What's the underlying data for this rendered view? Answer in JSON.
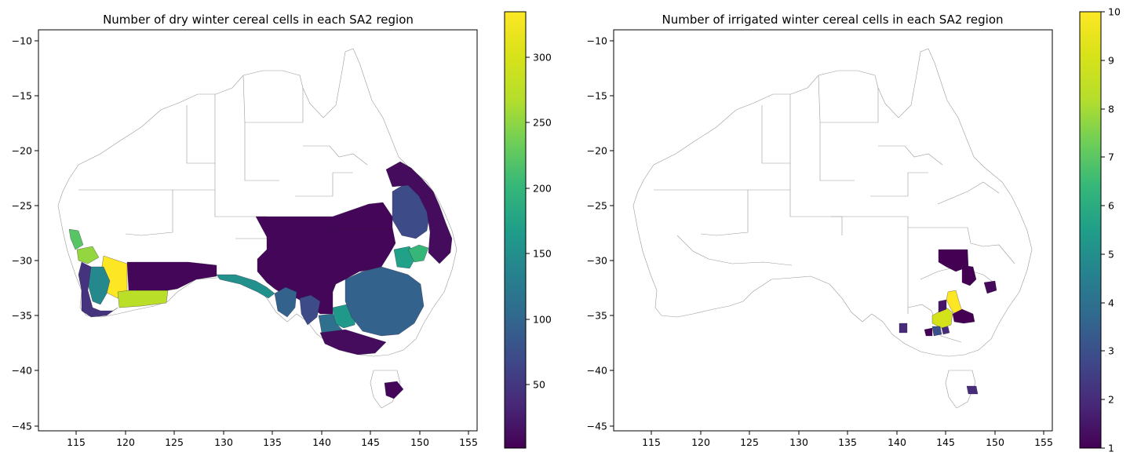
{
  "maps": [
    {
      "title": "Number of dry winter cereal cells in each SA2 region",
      "x_ticks": [
        "115",
        "120",
        "125",
        "130",
        "135",
        "140",
        "145",
        "150",
        "155"
      ],
      "y_ticks": [
        "−10",
        "−15",
        "−20",
        "−25",
        "−30",
        "−35",
        "−40",
        "−45"
      ],
      "colorbar": {
        "ticks": [
          "50",
          "100",
          "150",
          "200",
          "250",
          "300"
        ],
        "min": 1,
        "max": 332
      },
      "regions": [
        {
          "name": "wa-north-wheatbelt",
          "v": 220
        },
        {
          "name": "wa-central-west",
          "v": 250
        },
        {
          "name": "wa-yellow-block",
          "v": 332
        },
        {
          "name": "wa-south-coast",
          "v": 270
        },
        {
          "name": "wa-great-southern",
          "v": 140
        },
        {
          "name": "wa-south-west",
          "v": 45
        },
        {
          "name": "wa-goldfields",
          "v": 5
        },
        {
          "name": "sa-nullarbor",
          "v": 150
        },
        {
          "name": "sa-outback",
          "v": 5
        },
        {
          "name": "sa-eyre-peninsula",
          "v": 95
        },
        {
          "name": "sa-yorke",
          "v": 70
        },
        {
          "name": "vic-mallee",
          "v": 160
        },
        {
          "name": "vic-wimmera",
          "v": 110
        },
        {
          "name": "vic-south",
          "v": 10
        },
        {
          "name": "nsw-west",
          "v": 5
        },
        {
          "name": "nsw-central",
          "v": 95
        },
        {
          "name": "nsw-north-west",
          "v": 170
        },
        {
          "name": "nsw-north",
          "v": 200
        },
        {
          "name": "qld-darling-downs",
          "v": 70
        },
        {
          "name": "qld-central",
          "v": 10
        },
        {
          "name": "qld-south-west",
          "v": 5
        },
        {
          "name": "tas-north",
          "v": 5
        }
      ]
    },
    {
      "title": "Number of irrigated winter cereal cells in each SA2 region",
      "x_ticks": [
        "115",
        "120",
        "125",
        "130",
        "135",
        "140",
        "145",
        "150",
        "155"
      ],
      "y_ticks": [
        "−10",
        "−15",
        "−20",
        "−25",
        "−30",
        "−35",
        "−40",
        "−45"
      ],
      "colorbar": {
        "ticks": [
          "1",
          "2",
          "3",
          "4",
          "5",
          "6",
          "7",
          "8",
          "9",
          "10"
        ],
        "min": 1,
        "max": 10
      },
      "regions": [
        {
          "name": "nsw-bourke",
          "v": 1
        },
        {
          "name": "nsw-cobar",
          "v": 1
        },
        {
          "name": "nsw-central-west",
          "v": 1.2
        },
        {
          "name": "nsw-riverina-yellow",
          "v": 10
        },
        {
          "name": "nsw-riverina-green",
          "v": 9
        },
        {
          "name": "nsw-riverina-purple",
          "v": 1
        },
        {
          "name": "nsw-murray",
          "v": 1.5
        },
        {
          "name": "vic-goulburn",
          "v": 3
        },
        {
          "name": "vic-mallee",
          "v": 2
        },
        {
          "name": "vic-north",
          "v": 1
        },
        {
          "name": "sa-riverland",
          "v": 2
        },
        {
          "name": "tas-midlands",
          "v": 2
        }
      ]
    }
  ]
}
